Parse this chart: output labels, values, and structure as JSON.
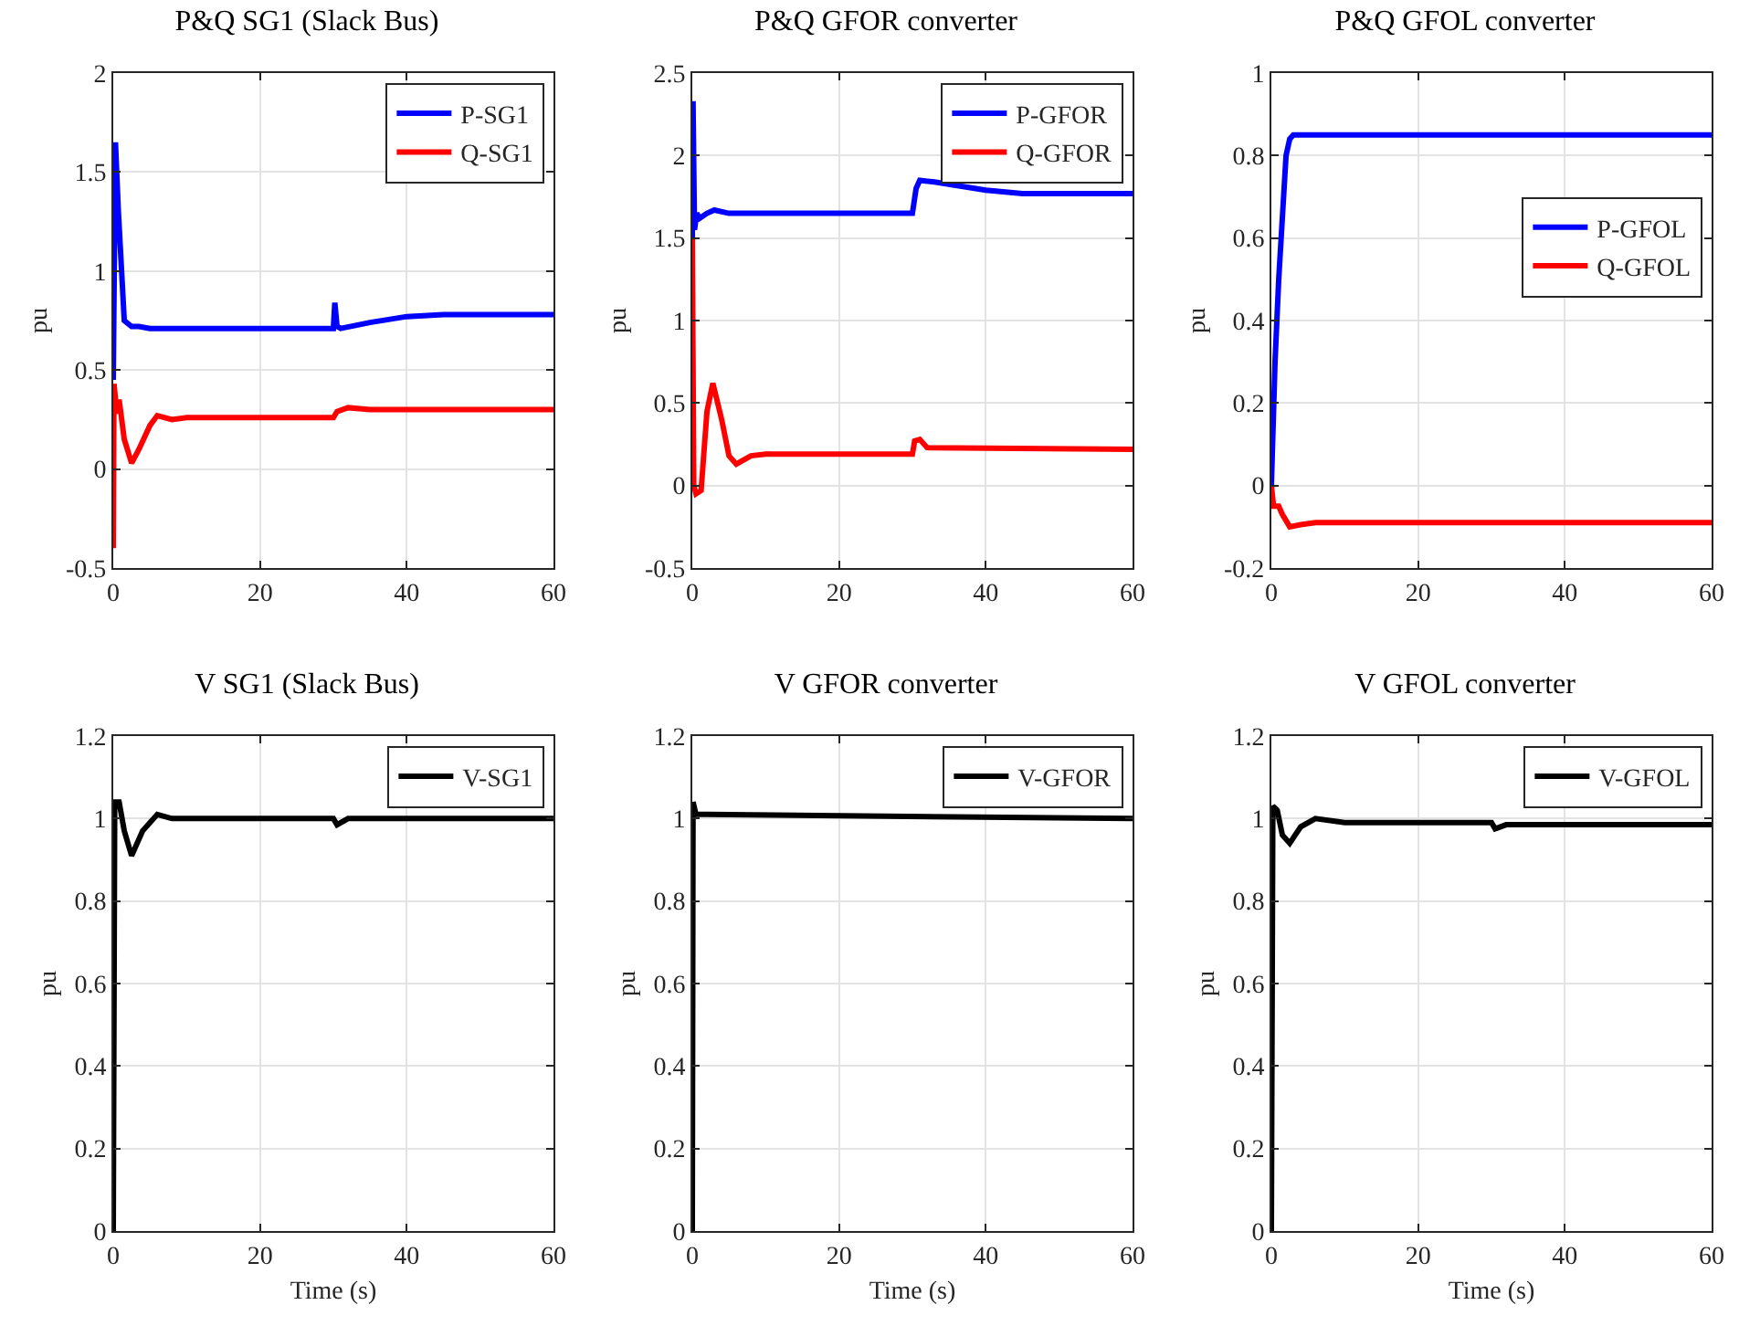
{
  "chart_data": [
    {
      "type": "line",
      "title": "P&Q SG1 (Slack Bus)",
      "ylabel": "pu",
      "xlim": [
        0,
        60
      ],
      "xticks": [
        0,
        20,
        40,
        60
      ],
      "ylim": [
        -0.5,
        2
      ],
      "yticks": [
        -0.5,
        0,
        0.5,
        1,
        1.5,
        2
      ],
      "grid": true,
      "legend": "top right",
      "line_style": "solid",
      "marker": "none",
      "series": [
        {
          "name": "P-SG1",
          "color": "#0000ff",
          "x": [
            0,
            0.3,
            0.7,
            1.5,
            2.5,
            3.5,
            5,
            10,
            20,
            30,
            30.2,
            30.5,
            31,
            35,
            40,
            45,
            50,
            60
          ],
          "values": [
            0.45,
            1.65,
            1.3,
            0.75,
            0.72,
            0.72,
            0.71,
            0.71,
            0.71,
            0.71,
            0.84,
            0.72,
            0.71,
            0.74,
            0.77,
            0.78,
            0.78,
            0.78
          ]
        },
        {
          "name": "Q-SG1",
          "color": "#ff0000",
          "x": [
            0,
            0.1,
            0.5,
            0.8,
            1.5,
            2.5,
            3.5,
            5,
            6,
            8,
            10,
            30,
            30.5,
            32,
            35,
            60
          ],
          "values": [
            -0.4,
            0.43,
            0.28,
            0.35,
            0.15,
            0.03,
            0.1,
            0.22,
            0.27,
            0.25,
            0.26,
            0.26,
            0.29,
            0.31,
            0.3,
            0.3
          ]
        }
      ]
    },
    {
      "type": "line",
      "title": "P&Q GFOR converter",
      "ylabel": "pu",
      "xlim": [
        0,
        60
      ],
      "xticks": [
        0,
        20,
        40,
        60
      ],
      "ylim": [
        -0.5,
        2.5
      ],
      "yticks": [
        -0.5,
        0,
        0.5,
        1,
        1.5,
        2,
        2.5
      ],
      "grid": true,
      "legend": "top right",
      "line_style": "solid",
      "marker": "none",
      "series": [
        {
          "name": "P-GFOR",
          "color": "#0000ff",
          "x": [
            0,
            0.1,
            0.3,
            0.6,
            1,
            2,
            3,
            5,
            30,
            30.5,
            31,
            33,
            40,
            45,
            60
          ],
          "values": [
            1.5,
            2.33,
            1.55,
            1.65,
            1.62,
            1.65,
            1.67,
            1.65,
            1.65,
            1.8,
            1.85,
            1.84,
            1.79,
            1.77,
            1.77
          ]
        },
        {
          "name": "Q-GFOR",
          "color": "#ff0000",
          "x": [
            0,
            0.2,
            0.5,
            1.2,
            2,
            2.8,
            4,
            5,
            6,
            8,
            10,
            30,
            30.3,
            31,
            32,
            60
          ],
          "values": [
            1.5,
            0,
            -0.05,
            -0.03,
            0.45,
            0.62,
            0.4,
            0.18,
            0.13,
            0.18,
            0.19,
            0.19,
            0.27,
            0.28,
            0.23,
            0.22
          ]
        }
      ]
    },
    {
      "type": "line",
      "title": "P&Q GFOL converter",
      "ylabel": "pu",
      "xlim": [
        0,
        60
      ],
      "xticks": [
        0,
        20,
        40,
        60
      ],
      "ylim": [
        -0.2,
        1
      ],
      "yticks": [
        -0.2,
        0,
        0.2,
        0.4,
        0.6,
        0.8,
        1
      ],
      "grid": true,
      "legend": "right",
      "line_style": "solid",
      "marker": "none",
      "series": [
        {
          "name": "P-GFOL",
          "color": "#0000ff",
          "x": [
            0,
            0.5,
            1,
            2,
            2.5,
            3,
            60
          ],
          "values": [
            0,
            0.3,
            0.5,
            0.8,
            0.84,
            0.85,
            0.85
          ]
        },
        {
          "name": "Q-GFOL",
          "color": "#ff0000",
          "x": [
            0,
            0.3,
            1,
            1.5,
            2.5,
            4,
            6,
            60
          ],
          "values": [
            0,
            -0.05,
            -0.05,
            -0.07,
            -0.1,
            -0.095,
            -0.09,
            -0.09
          ]
        }
      ]
    },
    {
      "type": "line",
      "title": "V SG1 (Slack Bus)",
      "xlabel": "Time (s)",
      "ylabel": "pu",
      "xlim": [
        0,
        60
      ],
      "xticks": [
        0,
        20,
        40,
        60
      ],
      "ylim": [
        0,
        1.2
      ],
      "yticks": [
        0,
        0.2,
        0.4,
        0.6,
        0.8,
        1,
        1.2
      ],
      "grid": true,
      "legend": "top right",
      "line_style": "solid",
      "marker": "none",
      "series": [
        {
          "name": "V-SG1",
          "color": "#000000",
          "x": [
            0,
            0.2,
            0.8,
            1.5,
            2.5,
            4,
            6,
            8,
            30,
            30.5,
            32,
            60
          ],
          "values": [
            0,
            1.04,
            1.04,
            0.97,
            0.91,
            0.97,
            1.01,
            1,
            1,
            0.985,
            1,
            1
          ]
        }
      ]
    },
    {
      "type": "line",
      "title": "V GFOR converter",
      "xlabel": "Time (s)",
      "ylabel": "pu",
      "xlim": [
        0,
        60
      ],
      "xticks": [
        0,
        20,
        40,
        60
      ],
      "ylim": [
        0,
        1.2
      ],
      "yticks": [
        0,
        0.2,
        0.4,
        0.6,
        0.8,
        1,
        1.2
      ],
      "grid": true,
      "legend": "top right",
      "line_style": "solid",
      "marker": "none",
      "series": [
        {
          "name": "V-GFOR",
          "color": "#000000",
          "x": [
            0,
            0.1,
            0.5,
            2,
            60
          ],
          "values": [
            0,
            1.04,
            1.01,
            1.01,
            1
          ]
        }
      ]
    },
    {
      "type": "line",
      "title": "V GFOL converter",
      "xlabel": "Time (s)",
      "ylabel": "pu",
      "xlim": [
        0,
        60
      ],
      "xticks": [
        0,
        20,
        40,
        60
      ],
      "ylim": [
        0,
        1.2
      ],
      "yticks": [
        0,
        0.2,
        0.4,
        0.6,
        0.8,
        1,
        1.2
      ],
      "grid": true,
      "legend": "top right",
      "line_style": "solid",
      "marker": "none",
      "series": [
        {
          "name": "V-GFOL",
          "color": "#000000",
          "x": [
            0,
            0.2,
            0.8,
            1.5,
            2.5,
            4,
            6,
            10,
            30,
            30.5,
            32,
            60
          ],
          "values": [
            0,
            1.03,
            1.02,
            0.96,
            0.94,
            0.98,
            1,
            0.99,
            0.99,
            0.975,
            0.985,
            0.985
          ]
        }
      ]
    }
  ]
}
